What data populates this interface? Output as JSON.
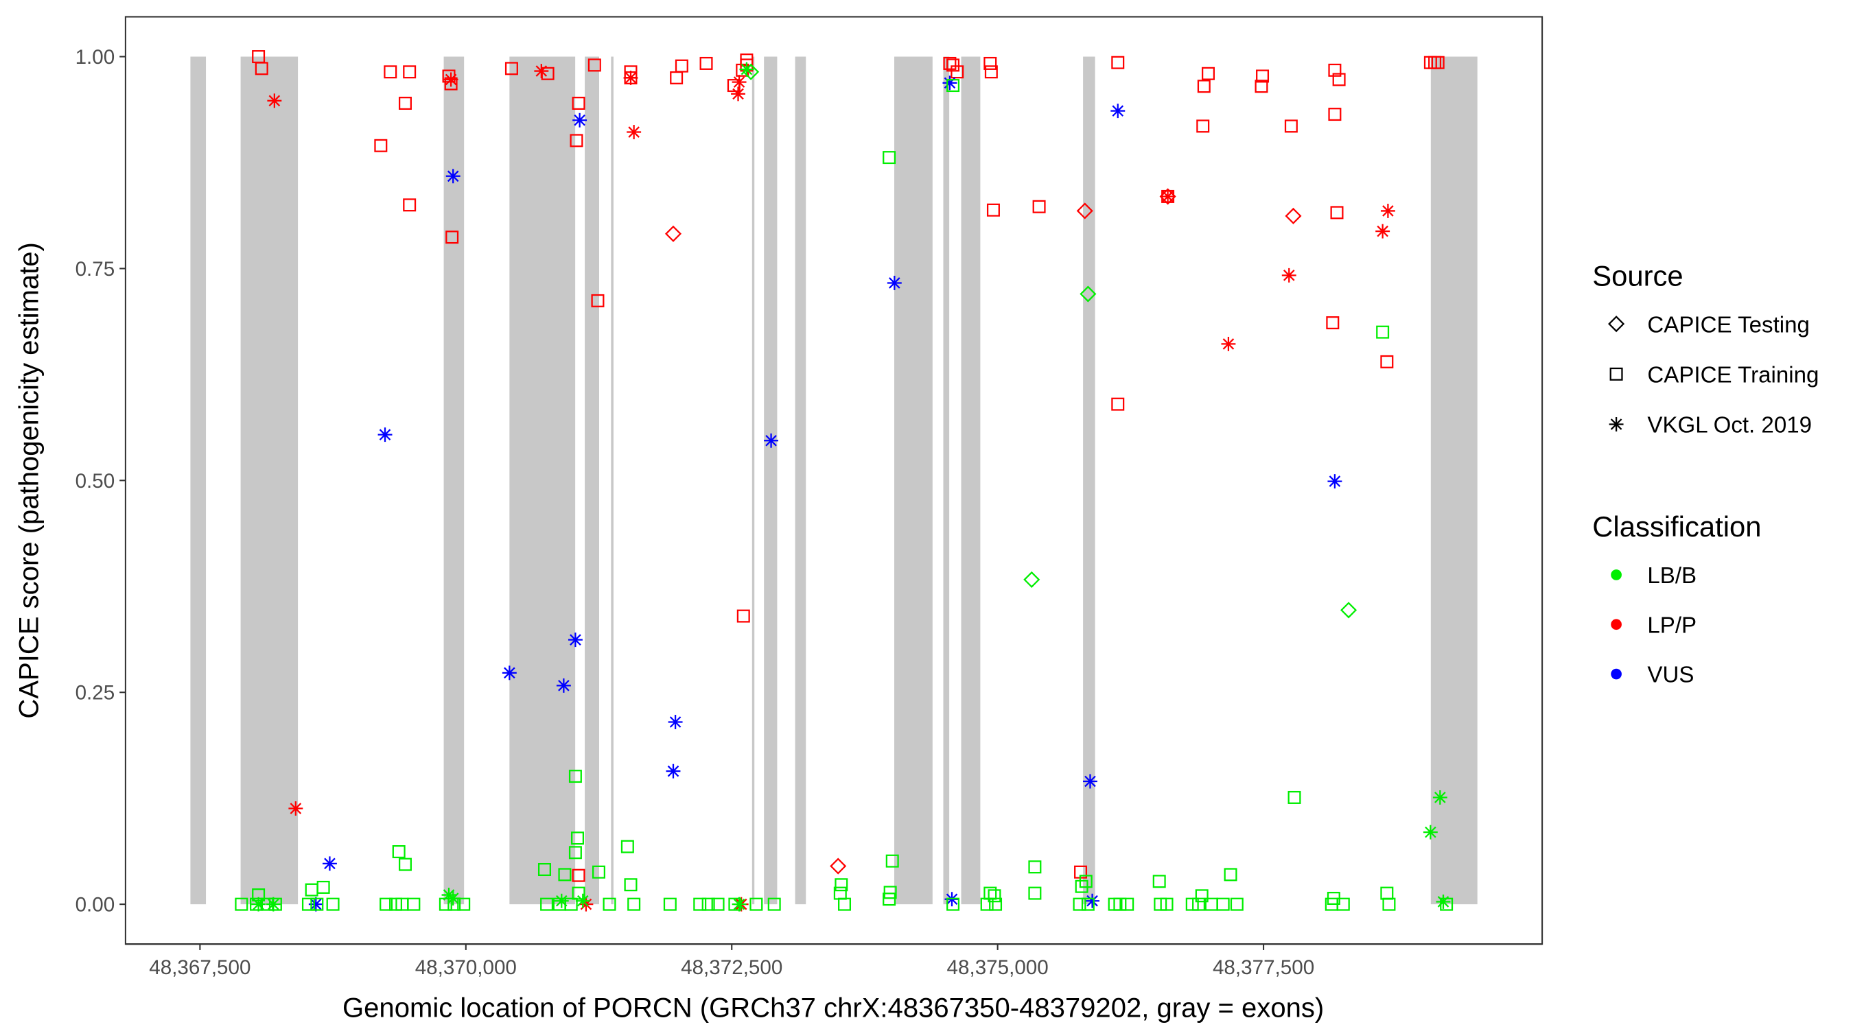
{
  "chart_data": {
    "type": "scatter",
    "xlabel": "Genomic location of PORCN (GRCh37 chrX:48367350-48379202, gray = exons)",
    "ylabel": "CAPICE score (pathogenicity estimate)",
    "xlim": [
      48366800,
      48380120
    ],
    "ylim": [
      -0.047,
      1.047
    ],
    "x_ticks": [
      {
        "value": 48367500,
        "label": "48,367,500"
      },
      {
        "value": 48370000,
        "label": "48,370,000"
      },
      {
        "value": 48372500,
        "label": "48,372,500"
      },
      {
        "value": 48375000,
        "label": "48,375,000"
      },
      {
        "value": 48377500,
        "label": "48,377,500"
      }
    ],
    "y_ticks": [
      {
        "value": 0,
        "label": "0.00"
      },
      {
        "value": 0.25,
        "label": "0.25"
      },
      {
        "value": 0.5,
        "label": "0.50"
      },
      {
        "value": 0.75,
        "label": "0.75"
      },
      {
        "value": 1,
        "label": "1.00"
      }
    ],
    "grid": false,
    "legend_placement": "right",
    "exons": [
      [
        48367410,
        48367556
      ],
      [
        48367882,
        48368421
      ],
      [
        48369792,
        48369983
      ],
      [
        48370410,
        48371028
      ],
      [
        48371118,
        48371253
      ],
      [
        48371365,
        48371388
      ],
      [
        48372691,
        48372713
      ],
      [
        48372803,
        48372927
      ],
      [
        48373096,
        48373197
      ],
      [
        48374028,
        48374388
      ],
      [
        48374489,
        48374545
      ],
      [
        48374657,
        48374837
      ],
      [
        48375803,
        48375916
      ],
      [
        48379073,
        48379511
      ]
    ],
    "exon_color": "#c8c8c8",
    "legend": {
      "source_title": "Source",
      "sources": [
        {
          "label": "CAPICE Testing",
          "shape": "diamond"
        },
        {
          "label": "CAPICE Training",
          "shape": "square"
        },
        {
          "label": "VKGL Oct. 2019",
          "shape": "asterisk"
        }
      ],
      "classification_title": "Classification",
      "classes": [
        {
          "label": "LB/B",
          "color": "#00ee00"
        },
        {
          "label": "LP/P",
          "color": "#ff0000"
        },
        {
          "label": "VUS",
          "color": "#0000ff"
        }
      ]
    },
    "series": [
      {
        "source": "CAPICE Training",
        "classification": "LP/P",
        "points": [
          [
            48368050,
            1.0
          ],
          [
            48368080,
            0.986
          ],
          [
            48369200,
            0.895
          ],
          [
            48369290,
            0.982
          ],
          [
            48369430,
            0.945
          ],
          [
            48369470,
            0.982
          ],
          [
            48369470,
            0.825
          ],
          [
            48369870,
            0.787
          ],
          [
            48369840,
            0.977
          ],
          [
            48369860,
            0.968
          ],
          [
            48370430,
            0.986
          ],
          [
            48370770,
            0.98
          ],
          [
            48371040,
            0.901
          ],
          [
            48371060,
            0.945
          ],
          [
            48371060,
            0.034
          ],
          [
            48371210,
            0.99
          ],
          [
            48371240,
            0.712
          ],
          [
            48371550,
            0.975
          ],
          [
            48371550,
            0.982
          ],
          [
            48371980,
            0.975
          ],
          [
            48372030,
            0.989
          ],
          [
            48372260,
            0.992
          ],
          [
            48372520,
            0.966
          ],
          [
            48372600,
            0.984
          ],
          [
            48372640,
            0.996
          ],
          [
            48372640,
            0.99
          ],
          [
            48372610,
            0.34
          ],
          [
            48374550,
            0.992
          ],
          [
            48374580,
            0.99
          ],
          [
            48374620,
            0.982
          ],
          [
            48374930,
            0.992
          ],
          [
            48374940,
            0.982
          ],
          [
            48374960,
            0.819
          ],
          [
            48375390,
            0.823
          ],
          [
            48375780,
            0.038
          ],
          [
            48376130,
            0.993
          ],
          [
            48376130,
            0.59
          ],
          [
            48376600,
            0.835
          ],
          [
            48376930,
            0.918
          ],
          [
            48376940,
            0.965
          ],
          [
            48376980,
            0.98
          ],
          [
            48377480,
            0.965
          ],
          [
            48377490,
            0.977
          ],
          [
            48377760,
            0.918
          ],
          [
            48378170,
            0.984
          ],
          [
            48378170,
            0.932
          ],
          [
            48378190,
            0.816
          ],
          [
            48378150,
            0.686
          ],
          [
            48378210,
            0.973
          ],
          [
            48378660,
            0.64
          ],
          [
            48379070,
            0.993
          ],
          [
            48379110,
            0.993
          ],
          [
            48379140,
            0.993
          ]
        ]
      },
      {
        "source": "VKGL Oct. 2019",
        "classification": "LP/P",
        "points": [
          [
            48368200,
            0.948
          ],
          [
            48368400,
            0.113
          ],
          [
            48369860,
            0.973
          ],
          [
            48370710,
            0.983
          ],
          [
            48371580,
            0.911
          ],
          [
            48371550,
            0.975
          ],
          [
            48372560,
            0.956
          ],
          [
            48372570,
            0.97
          ],
          [
            48371130,
            0.0
          ],
          [
            48372590,
            0.0
          ],
          [
            48376600,
            0.835
          ],
          [
            48377170,
            0.661
          ],
          [
            48377740,
            0.742
          ],
          [
            48378620,
            0.794
          ],
          [
            48378670,
            0.818
          ]
        ]
      },
      {
        "source": "CAPICE Testing",
        "classification": "LP/P",
        "points": [
          [
            48371950,
            0.791
          ],
          [
            48373500,
            0.045
          ],
          [
            48375820,
            0.818
          ],
          [
            48376600,
            0.835
          ],
          [
            48377780,
            0.812
          ]
        ]
      },
      {
        "source": "VKGL Oct. 2019",
        "classification": "VUS",
        "points": [
          [
            48368720,
            0.048
          ],
          [
            48368590,
            0.0
          ],
          [
            48369240,
            0.554
          ],
          [
            48369880,
            0.859
          ],
          [
            48370410,
            0.273
          ],
          [
            48370920,
            0.258
          ],
          [
            48371030,
            0.312
          ],
          [
            48371070,
            0.925
          ],
          [
            48371970,
            0.215
          ],
          [
            48371950,
            0.157
          ],
          [
            48372870,
            0.547
          ],
          [
            48374030,
            0.733
          ],
          [
            48374550,
            0.969
          ],
          [
            48374570,
            0.006
          ],
          [
            48375870,
            0.145
          ],
          [
            48375890,
            0.004
          ],
          [
            48376130,
            0.936
          ],
          [
            48378170,
            0.499
          ]
        ]
      },
      {
        "source": "CAPICE Training",
        "classification": "LB/B",
        "points": [
          [
            48373980,
            0.881
          ],
          [
            48378620,
            0.675
          ],
          [
            48371030,
            0.151
          ],
          [
            48371050,
            0.078
          ],
          [
            48371030,
            0.061
          ],
          [
            48369370,
            0.062
          ],
          [
            48369430,
            0.047
          ],
          [
            48370740,
            0.041
          ],
          [
            48370930,
            0.035
          ],
          [
            48371250,
            0.038
          ],
          [
            48371520,
            0.068
          ],
          [
            48371550,
            0.023
          ],
          [
            48377790,
            0.126
          ],
          [
            48375350,
            0.044
          ],
          [
            48375350,
            0.013
          ],
          [
            48377190,
            0.035
          ],
          [
            48376520,
            0.027
          ],
          [
            48374010,
            0.051
          ],
          [
            48373530,
            0.023
          ],
          [
            48373520,
            0.013
          ],
          [
            48375830,
            0.027
          ],
          [
            48375790,
            0.021
          ],
          [
            48373990,
            0.014
          ],
          [
            48373980,
            0.006
          ],
          [
            48368050,
            0.011
          ],
          [
            48368550,
            0.017
          ],
          [
            48368660,
            0.02
          ],
          [
            48371060,
            0.013
          ],
          [
            48376920,
            0.01
          ],
          [
            48378660,
            0.013
          ],
          [
            48378160,
            0.007
          ],
          [
            48374930,
            0.013
          ],
          [
            48374970,
            0.01
          ],
          [
            48374580,
            0.966
          ],
          [
            48367890,
            0
          ],
          [
            48368030,
            0
          ],
          [
            48368130,
            0
          ],
          [
            48368210,
            0
          ],
          [
            48368520,
            0
          ],
          [
            48368600,
            0
          ],
          [
            48368750,
            0
          ],
          [
            48369250,
            0
          ],
          [
            48369340,
            0
          ],
          [
            48369400,
            0
          ],
          [
            48369510,
            0
          ],
          [
            48369810,
            0
          ],
          [
            48369890,
            0
          ],
          [
            48369980,
            0
          ],
          [
            48370760,
            0
          ],
          [
            48370880,
            0
          ],
          [
            48370990,
            0
          ],
          [
            48371350,
            0
          ],
          [
            48371580,
            0
          ],
          [
            48371920,
            0
          ],
          [
            48372200,
            0
          ],
          [
            48372280,
            0
          ],
          [
            48372370,
            0
          ],
          [
            48372530,
            0
          ],
          [
            48372730,
            0
          ],
          [
            48372900,
            0
          ],
          [
            48373560,
            0
          ],
          [
            48374580,
            0
          ],
          [
            48374900,
            0
          ],
          [
            48374980,
            0
          ],
          [
            48375770,
            0
          ],
          [
            48375850,
            0
          ],
          [
            48376100,
            0
          ],
          [
            48376150,
            0
          ],
          [
            48376220,
            0
          ],
          [
            48376530,
            0
          ],
          [
            48376590,
            0
          ],
          [
            48376830,
            0
          ],
          [
            48376890,
            0
          ],
          [
            48377010,
            0
          ],
          [
            48377120,
            0
          ],
          [
            48377250,
            0
          ],
          [
            48378140,
            0
          ],
          [
            48378250,
            0
          ],
          [
            48378680,
            0
          ],
          [
            48379220,
            0
          ]
        ]
      },
      {
        "source": "CAPICE Testing",
        "classification": "LB/B",
        "points": [
          [
            48372680,
            0.982
          ],
          [
            48375850,
            0.72
          ],
          [
            48375320,
            0.383
          ],
          [
            48378300,
            0.347
          ]
        ]
      },
      {
        "source": "VKGL Oct. 2019",
        "classification": "LB/B",
        "points": [
          [
            48368050,
            0.0
          ],
          [
            48368190,
            0.0
          ],
          [
            48369840,
            0.011
          ],
          [
            48369880,
            0.007
          ],
          [
            48370900,
            0.004
          ],
          [
            48371100,
            0.004
          ],
          [
            48372570,
            0.0
          ],
          [
            48372640,
            0.985
          ],
          [
            48379160,
            0.126
          ],
          [
            48379070,
            0.085
          ],
          [
            48379190,
            0.003
          ]
        ]
      }
    ]
  }
}
